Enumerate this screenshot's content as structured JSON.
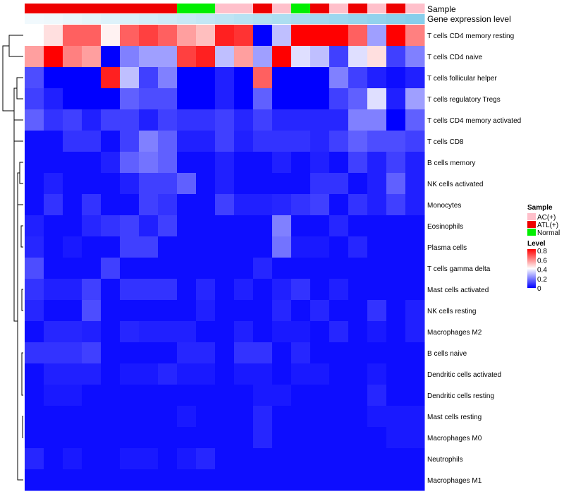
{
  "chart_data": {
    "type": "heatmap",
    "title": "",
    "row_labels": [
      "T cells CD4 memory resting",
      "T cells CD4 naive",
      "T cells follicular helper",
      "T cells regulatory  Tregs",
      "T cells CD4 memory activated",
      "T cells CD8",
      "B cells memory",
      "NK cells activated",
      "Monocytes",
      "Eosinophils",
      "Plasma cells",
      "T cells gamma delta",
      "Mast cells activated",
      "NK cells resting",
      "Macrophages M2",
      "B cells naive",
      "Dendritic cells activated",
      "Dendritic cells resting",
      "Mast cells resting",
      "Macrophages M0",
      "Neutrophils",
      "Macrophages M1"
    ],
    "sample_groups": [
      "ATL(+)",
      "ATL(+)",
      "ATL(+)",
      "ATL(+)",
      "ATL(+)",
      "ATL(+)",
      "ATL(+)",
      "ATL(+)",
      "Normal",
      "Normal",
      "AC(+)",
      "AC(+)",
      "ATL(+)",
      "AC(+)",
      "Normal",
      "ATL(+)",
      "AC(+)",
      "ATL(+)",
      "AC(+)",
      "ATL(+)",
      "AC(+)"
    ],
    "expression_level_annotation": [
      0.05,
      0.06,
      0.08,
      0.1,
      0.12,
      0.14,
      0.16,
      0.18,
      0.2,
      0.22,
      0.24,
      0.26,
      0.28,
      0.3,
      0.32,
      0.34,
      0.36,
      0.38,
      0.4,
      0.42,
      0.44
    ],
    "values": [
      [
        0.4,
        0.45,
        0.65,
        0.65,
        0.42,
        0.65,
        0.7,
        0.65,
        0.55,
        0.5,
        0.75,
        0.72,
        0.0,
        0.3,
        0.8,
        0.8,
        0.8,
        0.65,
        0.25,
        0.8,
        0.6
      ],
      [
        0.55,
        0.8,
        0.6,
        0.55,
        0.0,
        0.2,
        0.25,
        0.25,
        0.7,
        0.75,
        0.3,
        0.55,
        0.25,
        0.8,
        0.35,
        0.3,
        0.1,
        0.35,
        0.45,
        0.1,
        0.2
      ],
      [
        0.12,
        0.0,
        0.0,
        0.0,
        0.75,
        0.3,
        0.1,
        0.2,
        0.0,
        0.0,
        0.05,
        0.0,
        0.65,
        0.0,
        0.0,
        0.0,
        0.2,
        0.1,
        0.05,
        0.02,
        0.05
      ],
      [
        0.1,
        0.05,
        0.0,
        0.0,
        0.0,
        0.15,
        0.12,
        0.12,
        0.0,
        0.0,
        0.05,
        0.0,
        0.15,
        0.0,
        0.0,
        0.0,
        0.1,
        0.15,
        0.35,
        0.05,
        0.25
      ],
      [
        0.15,
        0.08,
        0.1,
        0.05,
        0.1,
        0.1,
        0.05,
        0.1,
        0.08,
        0.08,
        0.1,
        0.06,
        0.1,
        0.06,
        0.06,
        0.06,
        0.06,
        0.2,
        0.2,
        0.0,
        0.15
      ],
      [
        0.02,
        0.02,
        0.08,
        0.08,
        0.02,
        0.1,
        0.2,
        0.15,
        0.05,
        0.05,
        0.1,
        0.05,
        0.08,
        0.08,
        0.08,
        0.06,
        0.1,
        0.15,
        0.12,
        0.12,
        0.1
      ],
      [
        0.02,
        0.02,
        0.02,
        0.02,
        0.05,
        0.15,
        0.18,
        0.15,
        0.02,
        0.02,
        0.05,
        0.02,
        0.02,
        0.05,
        0.02,
        0.05,
        0.02,
        0.1,
        0.05,
        0.1,
        0.05
      ],
      [
        0.02,
        0.05,
        0.02,
        0.02,
        0.02,
        0.05,
        0.1,
        0.1,
        0.15,
        0.02,
        0.05,
        0.02,
        0.02,
        0.02,
        0.02,
        0.08,
        0.08,
        0.02,
        0.05,
        0.15,
        0.05
      ],
      [
        0.02,
        0.08,
        0.02,
        0.08,
        0.02,
        0.02,
        0.1,
        0.08,
        0.02,
        0.02,
        0.1,
        0.05,
        0.05,
        0.06,
        0.08,
        0.1,
        0.02,
        0.08,
        0.05,
        0.1,
        0.05
      ],
      [
        0.05,
        0.02,
        0.02,
        0.06,
        0.08,
        0.1,
        0.05,
        0.1,
        0.02,
        0.02,
        0.02,
        0.02,
        0.02,
        0.2,
        0.02,
        0.02,
        0.06,
        0.02,
        0.02,
        0.02,
        0.02
      ],
      [
        0.06,
        0.02,
        0.04,
        0.02,
        0.02,
        0.1,
        0.1,
        0.02,
        0.02,
        0.02,
        0.02,
        0.02,
        0.02,
        0.18,
        0.04,
        0.04,
        0.02,
        0.06,
        0.02,
        0.02,
        0.02
      ],
      [
        0.12,
        0.02,
        0.02,
        0.02,
        0.1,
        0.02,
        0.02,
        0.02,
        0.02,
        0.02,
        0.02,
        0.02,
        0.06,
        0.02,
        0.02,
        0.02,
        0.02,
        0.02,
        0.02,
        0.02,
        0.02
      ],
      [
        0.08,
        0.05,
        0.05,
        0.1,
        0.02,
        0.08,
        0.08,
        0.08,
        0.02,
        0.06,
        0.02,
        0.05,
        0.02,
        0.05,
        0.08,
        0.02,
        0.05,
        0.02,
        0.02,
        0.02,
        0.02
      ],
      [
        0.06,
        0.02,
        0.02,
        0.12,
        0.02,
        0.02,
        0.02,
        0.02,
        0.02,
        0.05,
        0.02,
        0.02,
        0.02,
        0.06,
        0.02,
        0.06,
        0.02,
        0.02,
        0.08,
        0.02,
        0.05
      ],
      [
        0.02,
        0.06,
        0.06,
        0.05,
        0.02,
        0.06,
        0.05,
        0.05,
        0.05,
        0.02,
        0.02,
        0.05,
        0.02,
        0.04,
        0.04,
        0.02,
        0.06,
        0.02,
        0.04,
        0.02,
        0.05
      ],
      [
        0.08,
        0.08,
        0.08,
        0.1,
        0.02,
        0.02,
        0.02,
        0.02,
        0.06,
        0.06,
        0.02,
        0.08,
        0.08,
        0.02,
        0.06,
        0.02,
        0.02,
        0.02,
        0.02,
        0.02,
        0.02
      ],
      [
        0.02,
        0.05,
        0.05,
        0.05,
        0.02,
        0.04,
        0.04,
        0.06,
        0.04,
        0.04,
        0.02,
        0.04,
        0.04,
        0.02,
        0.04,
        0.04,
        0.02,
        0.02,
        0.04,
        0.02,
        0.02
      ],
      [
        0.02,
        0.04,
        0.04,
        0.02,
        0.02,
        0.02,
        0.02,
        0.02,
        0.02,
        0.02,
        0.02,
        0.02,
        0.04,
        0.04,
        0.02,
        0.02,
        0.02,
        0.02,
        0.06,
        0.02,
        0.02
      ],
      [
        0.02,
        0.02,
        0.02,
        0.02,
        0.02,
        0.02,
        0.02,
        0.02,
        0.04,
        0.02,
        0.02,
        0.02,
        0.06,
        0.02,
        0.02,
        0.02,
        0.02,
        0.02,
        0.04,
        0.04,
        0.04
      ],
      [
        0.02,
        0.02,
        0.02,
        0.02,
        0.02,
        0.02,
        0.02,
        0.02,
        0.02,
        0.02,
        0.02,
        0.02,
        0.06,
        0.02,
        0.02,
        0.02,
        0.02,
        0.02,
        0.02,
        0.04,
        0.04
      ],
      [
        0.06,
        0.02,
        0.04,
        0.02,
        0.02,
        0.04,
        0.04,
        0.02,
        0.04,
        0.06,
        0.02,
        0.02,
        0.02,
        0.02,
        0.02,
        0.02,
        0.02,
        0.02,
        0.02,
        0.02,
        0.02
      ],
      [
        0.02,
        0.02,
        0.02,
        0.02,
        0.02,
        0.02,
        0.02,
        0.02,
        0.02,
        0.02,
        0.02,
        0.02,
        0.02,
        0.02,
        0.02,
        0.02,
        0.02,
        0.02,
        0.02,
        0.02,
        0.02
      ]
    ],
    "annotation_labels": {
      "sample": "Sample",
      "level": "Gene expression level"
    },
    "legend": {
      "sample_title": "Sample",
      "sample_entries": [
        {
          "label": "AC(+)",
          "color": "#ffc0cb"
        },
        {
          "label": "ATL(+)",
          "color": "#ee0000"
        },
        {
          "label": "Normal",
          "color": "#00ee00"
        }
      ],
      "level_title": "Level",
      "level_ticks": [
        "0.8",
        "0.6",
        "0.4",
        "0.2",
        "0"
      ],
      "placement": "right"
    },
    "color_scale": {
      "low": "#0000ff",
      "mid": "#ffffff",
      "high": "#ff0000",
      "min": 0,
      "max": 0.8
    },
    "level_color_scale": {
      "low": "#ffffff",
      "high": "#87ceeb"
    }
  }
}
